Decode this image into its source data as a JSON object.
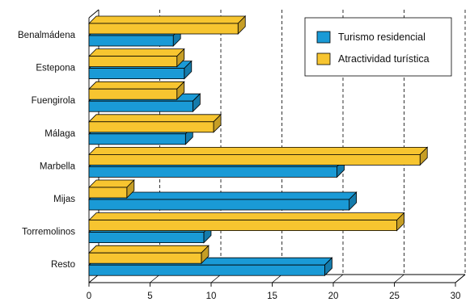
{
  "chart_data": {
    "type": "bar",
    "orientation": "horizontal",
    "style": "3d",
    "categories": [
      "Benalmádena",
      "Estepona",
      "Fuengirola",
      "Málaga",
      "Marbella",
      "Mijas",
      "Torremolinos",
      "Resto"
    ],
    "series": [
      {
        "name": "Turismo residencial",
        "color": "#1a9ad6",
        "values": [
          6.9,
          7.8,
          8.5,
          7.9,
          20.3,
          21.3,
          9.4,
          19.3
        ]
      },
      {
        "name": "Atractividad turística",
        "color": "#f7c530",
        "values": [
          12.2,
          7.2,
          7.2,
          10.2,
          27.1,
          3.1,
          25.2,
          9.2
        ]
      }
    ],
    "x_ticks": [
      "0",
      "5",
      "10",
      "15",
      "20",
      "25",
      "30"
    ],
    "xlim": [
      0,
      30
    ],
    "grid": "dashed vertical",
    "legend_position": "top-right"
  }
}
